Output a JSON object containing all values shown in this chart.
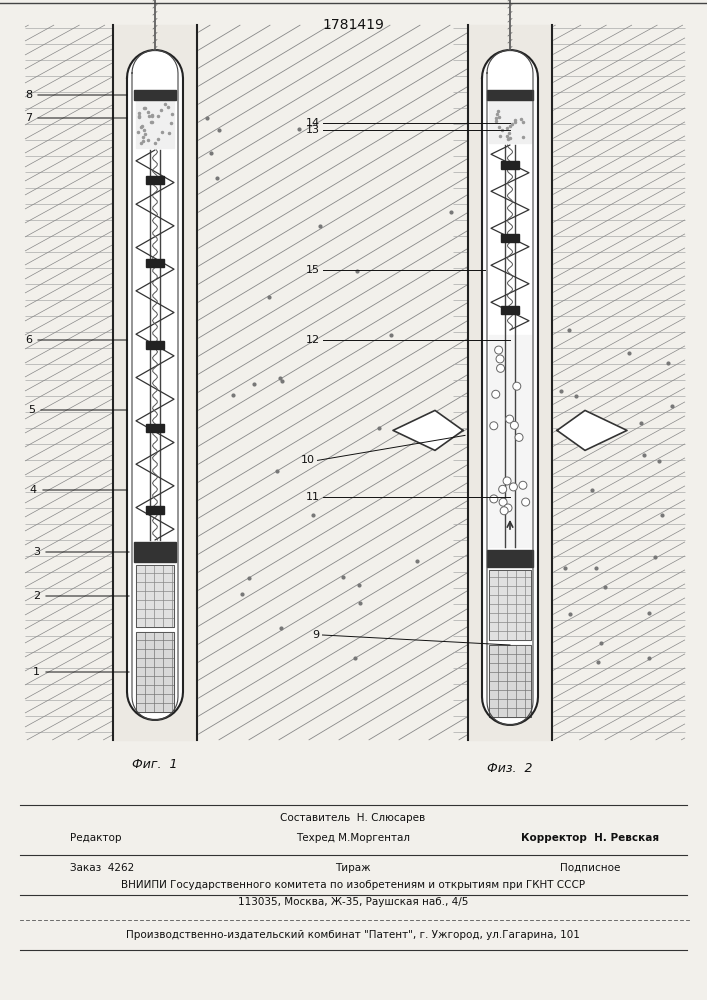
{
  "title": "1781419",
  "fig1_label": "Фиг.  1",
  "fig2_label": "Физ.  2",
  "bg_color": "#f2f0eb",
  "line_color": "#1a1a1a",
  "editor_label": "Редактор",
  "composer_line": "Составитель  Н. Слюсарев",
  "techred_line": "Техред М.Моргентал",
  "corrector_line": "Корректор  Н. Ревская",
  "order_text": "Заказ  4262",
  "tirazh_text": "Тираж",
  "podpisnoe_text": "Подписное",
  "vniiipi_line": "ВНИИПИ Государственного комитета по изобретениям и открытиям при ГКНТ СССР",
  "address_line": "113035, Москва, Ж-35, Раушская наб., 4/5",
  "factory_line": "Производственно-издательский комбинат \"Патент\", г. Ужгород, ул.Гагарина, 101"
}
